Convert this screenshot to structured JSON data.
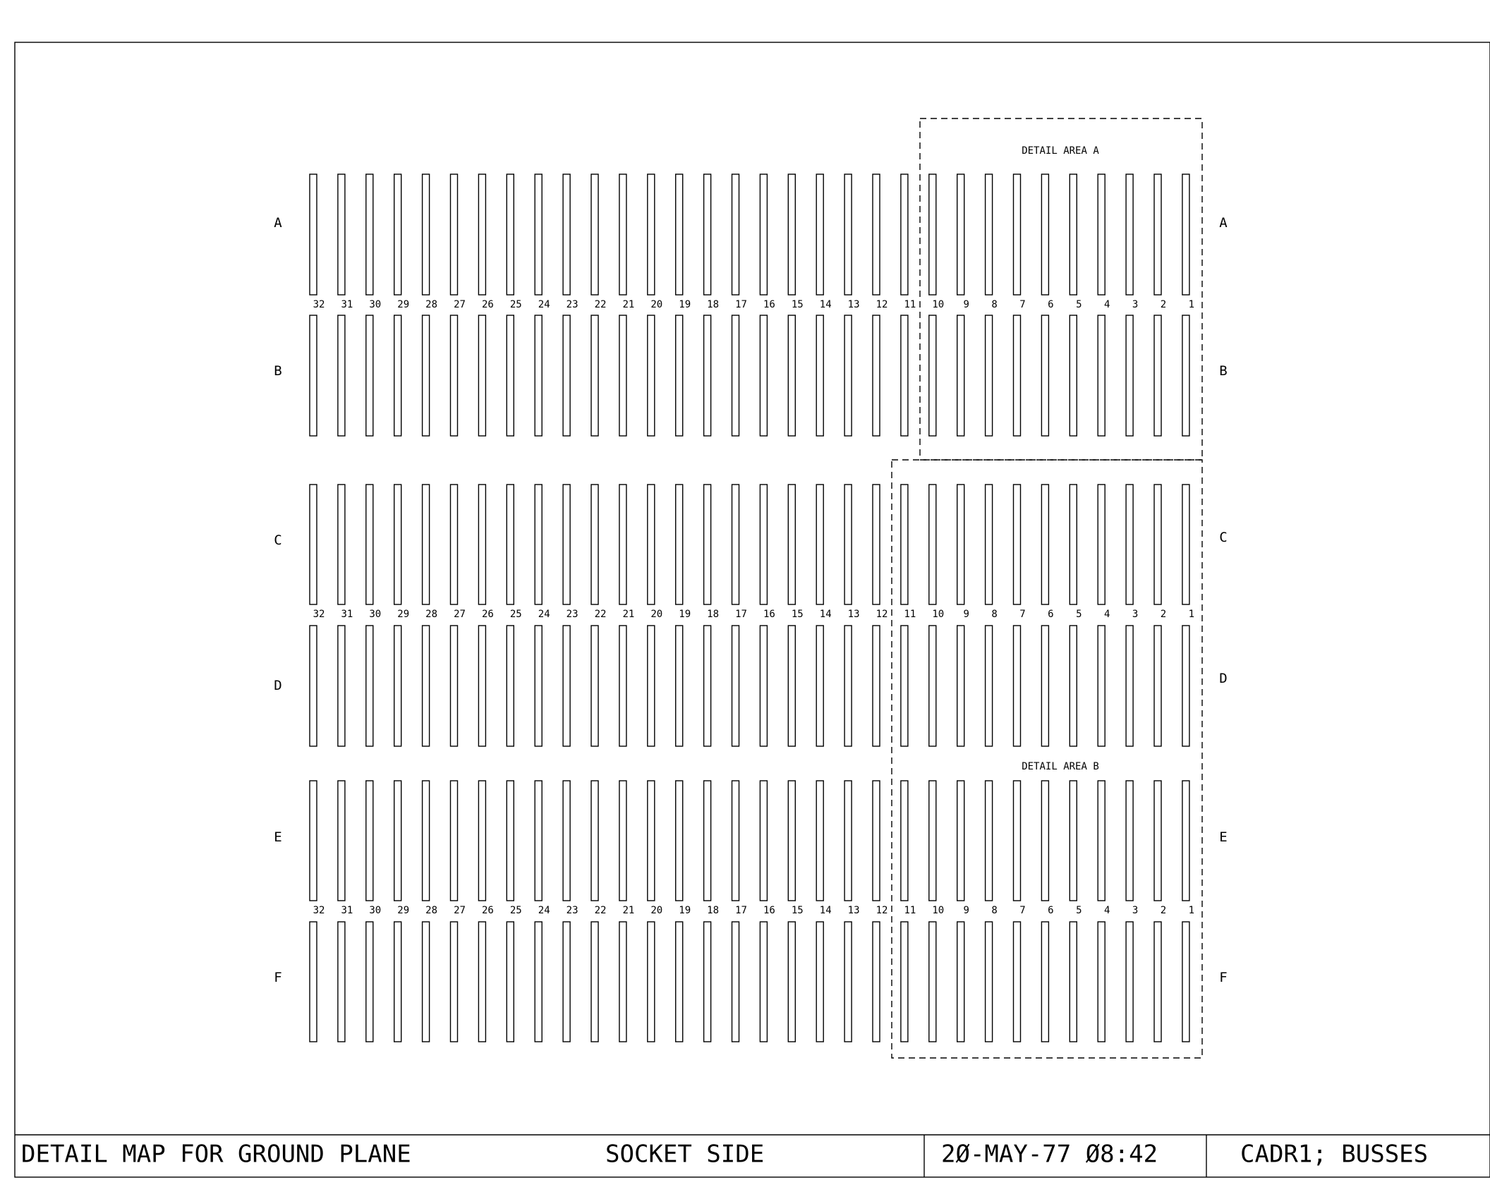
{
  "rows": {
    "a": "A",
    "b": "B",
    "c": "C",
    "d": "D",
    "e": "E",
    "f": "F"
  },
  "detail_areas": {
    "a": "DETAIL AREA A",
    "b": "DETAIL AREA B"
  },
  "title_block": {
    "description": "DETAIL MAP FOR GROUND PLANE",
    "side": "SOCKET SIDE",
    "datetime": "2Ø-MAY-77 Ø8:42",
    "sheet": "CADR1; BUSSES"
  },
  "column_labels": [
    "32",
    "31",
    "30",
    "29",
    "28",
    "27",
    "26",
    "25",
    "24",
    "23",
    "22",
    "21",
    "20",
    "19",
    "18",
    "17",
    "16",
    "15",
    "14",
    "13",
    "12",
    "11",
    "10",
    "9",
    "8",
    "7",
    "6",
    "5",
    "4",
    "3",
    "2",
    "1"
  ],
  "colors": {
    "line": "#000000",
    "background": "#ffffff"
  }
}
